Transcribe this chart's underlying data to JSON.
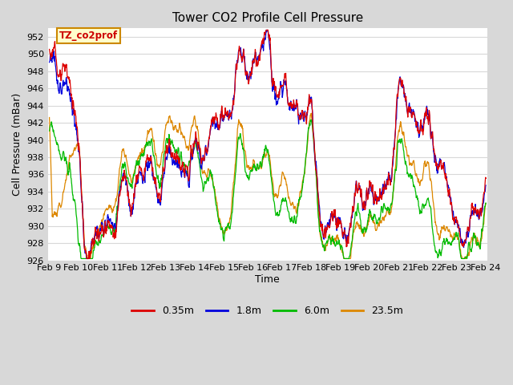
{
  "title": "Tower CO2 Profile Cell Pressure",
  "xlabel": "Time",
  "ylabel": "Cell Pressure (mBar)",
  "ylim": [
    926,
    953
  ],
  "yticks": [
    926,
    928,
    930,
    932,
    934,
    936,
    938,
    940,
    942,
    944,
    946,
    948,
    950,
    952
  ],
  "colors": {
    "0.35m": "#dd0000",
    "1.8m": "#0000dd",
    "6.0m": "#00bb00",
    "23.5m": "#dd8800"
  },
  "legend_labels": [
    "0.35m",
    "1.8m",
    "6.0m",
    "23.5m"
  ],
  "annotation_text": "TZ_co2prof",
  "annotation_bbox": {
    "facecolor": "#ffffcc",
    "edgecolor": "#cc8800",
    "linewidth": 1.5
  },
  "fig_background": "#d8d8d8",
  "axes_background": "#ffffff",
  "grid_color": "#d8d8d8",
  "title_fontsize": 11,
  "axis_label_fontsize": 9,
  "tick_fontsize": 8,
  "date_start": 9,
  "date_end": 24
}
